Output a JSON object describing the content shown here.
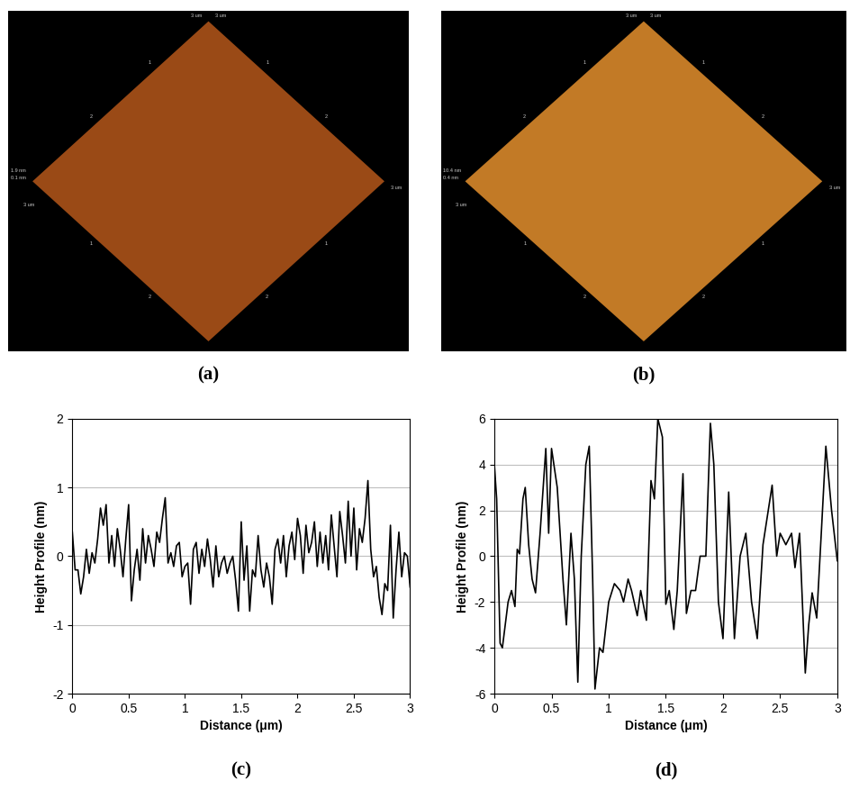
{
  "images": [
    {
      "label": "(a)",
      "scale_label": "3 um",
      "axis_ticks": [
        1,
        2
      ],
      "z_labels": [
        "1.9 nm",
        "0.1 nm"
      ]
    },
    {
      "label": "(b)",
      "scale_label": "3 um",
      "axis_ticks": [
        1,
        2
      ],
      "z_labels": [
        "10.4 nm",
        "0.4 nm"
      ]
    }
  ],
  "chart_data": [
    {
      "type": "line",
      "label": "(c)",
      "x_label": "Distance (μm)",
      "y_label": "Height Profile (nm)",
      "color": "#000000",
      "grid": "y",
      "xlim": [
        0,
        3
      ],
      "xticks": [
        0,
        0.5,
        1,
        1.5,
        2,
        2.5,
        3
      ],
      "ylim": [
        -2,
        2
      ],
      "yticks": [
        -2,
        -1,
        0,
        1,
        2
      ],
      "x": [
        0.0,
        0.025,
        0.05,
        0.075,
        0.1,
        0.125,
        0.15,
        0.175,
        0.2,
        0.225,
        0.25,
        0.275,
        0.3,
        0.325,
        0.35,
        0.375,
        0.4,
        0.425,
        0.45,
        0.475,
        0.5,
        0.525,
        0.55,
        0.575,
        0.6,
        0.625,
        0.65,
        0.675,
        0.7,
        0.725,
        0.75,
        0.775,
        0.8,
        0.825,
        0.85,
        0.875,
        0.9,
        0.925,
        0.95,
        0.975,
        1.0,
        1.025,
        1.05,
        1.075,
        1.1,
        1.125,
        1.15,
        1.175,
        1.2,
        1.225,
        1.25,
        1.275,
        1.3,
        1.325,
        1.35,
        1.375,
        1.4,
        1.425,
        1.45,
        1.475,
        1.5,
        1.525,
        1.55,
        1.575,
        1.6,
        1.625,
        1.65,
        1.675,
        1.7,
        1.725,
        1.75,
        1.775,
        1.8,
        1.825,
        1.85,
        1.875,
        1.9,
        1.925,
        1.95,
        1.975,
        2.0,
        2.025,
        2.05,
        2.075,
        2.1,
        2.125,
        2.15,
        2.175,
        2.2,
        2.225,
        2.25,
        2.275,
        2.3,
        2.325,
        2.35,
        2.375,
        2.4,
        2.425,
        2.45,
        2.475,
        2.5,
        2.525,
        2.55,
        2.575,
        2.6,
        2.625,
        2.65,
        2.675,
        2.7,
        2.725,
        2.75,
        2.775,
        2.8,
        2.825,
        2.85,
        2.875,
        2.9,
        2.925,
        2.95,
        2.975,
        3.0
      ],
      "values": [
        0.35,
        -0.2,
        -0.2,
        -0.55,
        -0.3,
        0.1,
        -0.25,
        0.05,
        -0.1,
        0.25,
        0.7,
        0.45,
        0.75,
        -0.1,
        0.3,
        -0.15,
        0.4,
        0.1,
        -0.3,
        0.25,
        0.75,
        -0.65,
        -0.2,
        0.1,
        -0.35,
        0.4,
        -0.1,
        0.3,
        0.1,
        -0.15,
        0.35,
        0.2,
        0.55,
        0.85,
        -0.1,
        0.05,
        -0.15,
        0.15,
        0.2,
        -0.3,
        -0.15,
        -0.1,
        -0.7,
        0.1,
        0.2,
        -0.25,
        0.1,
        -0.15,
        0.25,
        -0.05,
        -0.45,
        0.15,
        -0.3,
        -0.1,
        0.0,
        -0.25,
        -0.1,
        0.0,
        -0.35,
        -0.8,
        0.5,
        -0.35,
        0.15,
        -0.8,
        -0.2,
        -0.3,
        0.3,
        -0.2,
        -0.45,
        -0.1,
        -0.3,
        -0.7,
        0.1,
        0.25,
        -0.1,
        0.3,
        -0.3,
        0.15,
        0.35,
        -0.05,
        0.55,
        0.3,
        -0.25,
        0.45,
        0.05,
        0.2,
        0.5,
        -0.15,
        0.35,
        -0.1,
        0.3,
        -0.2,
        0.6,
        0.15,
        -0.3,
        0.65,
        0.3,
        -0.1,
        0.8,
        0.0,
        0.7,
        -0.2,
        0.4,
        0.2,
        0.55,
        1.1,
        0.1,
        -0.3,
        -0.15,
        -0.6,
        -0.85,
        -0.4,
        -0.5,
        0.45,
        -0.9,
        -0.2,
        0.35,
        -0.3,
        0.05,
        0.0,
        -0.45
      ]
    },
    {
      "type": "line",
      "label": "(d)",
      "x_label": "Distance (μm)",
      "y_label": "Height Profile (nm)",
      "color": "#000000",
      "grid": "y",
      "xlim": [
        0,
        3
      ],
      "xticks": [
        0,
        0.5,
        1,
        1.5,
        2,
        2.5,
        3
      ],
      "ylim": [
        -6,
        6
      ],
      "yticks": [
        -6,
        -4,
        -2,
        0,
        2,
        4,
        6
      ],
      "x": [
        0.0,
        0.02,
        0.05,
        0.07,
        0.12,
        0.15,
        0.18,
        0.2,
        0.22,
        0.25,
        0.27,
        0.3,
        0.33,
        0.36,
        0.4,
        0.45,
        0.475,
        0.5,
        0.55,
        0.6,
        0.63,
        0.67,
        0.7,
        0.73,
        0.76,
        0.8,
        0.83,
        0.86,
        0.88,
        0.92,
        0.95,
        1.0,
        1.05,
        1.1,
        1.13,
        1.17,
        1.2,
        1.25,
        1.28,
        1.33,
        1.37,
        1.4,
        1.43,
        1.47,
        1.5,
        1.53,
        1.57,
        1.6,
        1.65,
        1.68,
        1.72,
        1.76,
        1.8,
        1.85,
        1.89,
        1.92,
        1.96,
        2.0,
        2.05,
        2.1,
        2.15,
        2.2,
        2.25,
        2.3,
        2.35,
        2.43,
        2.47,
        2.5,
        2.55,
        2.6,
        2.63,
        2.67,
        2.72,
        2.75,
        2.78,
        2.82,
        2.86,
        2.9,
        2.95,
        3.0
      ],
      "values": [
        4.0,
        2.5,
        -3.8,
        -4.0,
        -2.0,
        -1.5,
        -2.2,
        0.3,
        0.1,
        2.5,
        3.0,
        0.5,
        -1.0,
        -1.6,
        1.0,
        4.7,
        1.0,
        4.7,
        3.0,
        -1.0,
        -3.0,
        1.0,
        -1.0,
        -5.5,
        0.0,
        4.0,
        4.8,
        -1.0,
        -5.8,
        -4.0,
        -4.2,
        -2.0,
        -1.2,
        -1.5,
        -2.0,
        -1.0,
        -1.5,
        -2.6,
        -1.5,
        -2.8,
        3.3,
        2.5,
        6.0,
        5.2,
        -2.1,
        -1.5,
        -3.2,
        -1.5,
        3.6,
        -2.5,
        -1.5,
        -1.5,
        0.0,
        0.0,
        5.8,
        4.0,
        -2.0,
        -3.6,
        2.8,
        -3.6,
        0.0,
        1.0,
        -2.0,
        -3.6,
        0.5,
        3.1,
        0.0,
        1.0,
        0.5,
        1.0,
        -0.5,
        1.0,
        -5.1,
        -3.0,
        -1.6,
        -2.7,
        1.0,
        4.8,
        2.0,
        -0.2
      ]
    }
  ]
}
